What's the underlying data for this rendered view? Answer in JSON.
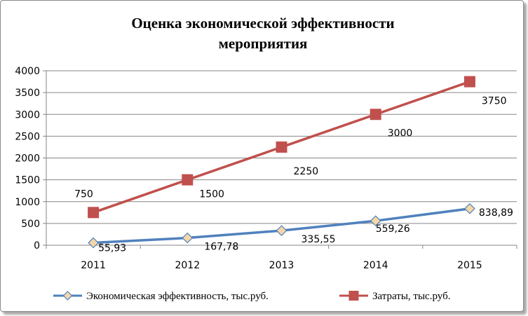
{
  "chart_data": {
    "type": "line",
    "title_lines": [
      "Оценка экономической эффективности",
      "мероприятия"
    ],
    "categories": [
      "2011",
      "2012",
      "2013",
      "2014",
      "2015"
    ],
    "ylim": [
      0,
      4000
    ],
    "yticks": [
      "0",
      "500",
      "1000",
      "1500",
      "2000",
      "2500",
      "3000",
      "3500",
      "4000"
    ],
    "grid": true,
    "legend_position": "bottom",
    "series": [
      {
        "name": "Экономическая эффективность, тыс.руб.",
        "values": [
          55.93,
          167.78,
          335.55,
          559.26,
          838.89
        ],
        "labels": [
          "55,93",
          "167,78",
          "335,55",
          "559,26",
          "838,89"
        ],
        "color": "#4f81bd",
        "marker": "diamond",
        "marker_color": "#f6d6a8"
      },
      {
        "name": "Затраты, тыс.руб.",
        "values": [
          750,
          1500,
          2250,
          3000,
          3750
        ],
        "labels": [
          "750",
          "1500",
          "2250",
          "3000",
          "3750"
        ],
        "color": "#c0504d",
        "marker": "square",
        "marker_color": "#c0504d"
      }
    ]
  }
}
